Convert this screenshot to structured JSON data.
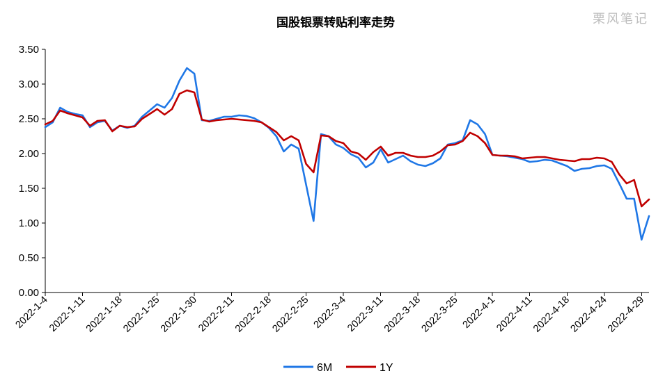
{
  "watermark": "栗风笔记",
  "chart_data": {
    "type": "line",
    "title": "国股银票转贴利率走势",
    "xlabel": "",
    "ylabel": "",
    "ylim": [
      0,
      3.5
    ],
    "yticks": [
      "0.00",
      "0.50",
      "1.00",
      "1.50",
      "2.00",
      "2.50",
      "3.00",
      "3.50"
    ],
    "grid": false,
    "legend": "bottom-center",
    "xtick_labels": [
      {
        "label": "2022-1-4",
        "index": 0
      },
      {
        "label": "2022-1-11",
        "index": 5
      },
      {
        "label": "2022-1-18",
        "index": 10
      },
      {
        "label": "2022-1-25",
        "index": 15
      },
      {
        "label": "2022-1-30",
        "index": 20
      },
      {
        "label": "2022-2-11",
        "index": 25
      },
      {
        "label": "2022-2-18",
        "index": 30
      },
      {
        "label": "2022-2-25",
        "index": 35
      },
      {
        "label": "2022-3-4",
        "index": 40
      },
      {
        "label": "2022-3-11",
        "index": 45
      },
      {
        "label": "2022-3-18",
        "index": 50
      },
      {
        "label": "2022-3-25",
        "index": 55
      },
      {
        "label": "2022-4-1",
        "index": 60
      },
      {
        "label": "2022-4-11",
        "index": 65
      },
      {
        "label": "2022-4-18",
        "index": 70
      },
      {
        "label": "2022-4-24",
        "index": 75
      },
      {
        "label": "2022-4-29",
        "index": 80
      }
    ],
    "series": [
      {
        "name": "6M",
        "color": "#1f77e6",
        "values": [
          2.38,
          2.45,
          2.66,
          2.6,
          2.57,
          2.55,
          2.38,
          2.45,
          2.47,
          2.33,
          2.4,
          2.37,
          2.4,
          2.53,
          2.62,
          2.71,
          2.66,
          2.8,
          3.05,
          3.23,
          3.15,
          2.48,
          2.47,
          2.5,
          2.53,
          2.53,
          2.55,
          2.54,
          2.51,
          2.45,
          2.37,
          2.25,
          2.03,
          2.13,
          2.07,
          1.55,
          1.03,
          2.28,
          2.25,
          2.13,
          2.08,
          1.99,
          1.94,
          1.8,
          1.87,
          2.06,
          1.87,
          1.92,
          1.97,
          1.89,
          1.84,
          1.82,
          1.86,
          1.93,
          2.13,
          2.15,
          2.19,
          2.48,
          2.42,
          2.28,
          1.98,
          1.97,
          1.96,
          1.94,
          1.92,
          1.88,
          1.89,
          1.91,
          1.9,
          1.86,
          1.82,
          1.75,
          1.78,
          1.79,
          1.82,
          1.83,
          1.78,
          1.57,
          1.35,
          1.35,
          0.76,
          1.1
        ]
      },
      {
        "name": "1Y",
        "color": "#c00000",
        "values": [
          2.42,
          2.47,
          2.62,
          2.58,
          2.55,
          2.52,
          2.4,
          2.47,
          2.48,
          2.32,
          2.4,
          2.38,
          2.39,
          2.5,
          2.57,
          2.64,
          2.56,
          2.64,
          2.86,
          2.91,
          2.88,
          2.49,
          2.46,
          2.48,
          2.49,
          2.5,
          2.49,
          2.48,
          2.47,
          2.45,
          2.38,
          2.31,
          2.19,
          2.25,
          2.19,
          1.85,
          1.73,
          2.26,
          2.25,
          2.18,
          2.15,
          2.03,
          2.0,
          1.91,
          2.02,
          2.1,
          1.97,
          2.01,
          2.01,
          1.97,
          1.95,
          1.95,
          1.97,
          2.03,
          2.12,
          2.13,
          2.18,
          2.3,
          2.25,
          2.15,
          1.98,
          1.97,
          1.97,
          1.96,
          1.93,
          1.94,
          1.95,
          1.95,
          1.93,
          1.91,
          1.9,
          1.89,
          1.92,
          1.92,
          1.94,
          1.93,
          1.88,
          1.7,
          1.57,
          1.62,
          1.24,
          1.34
        ]
      }
    ]
  }
}
